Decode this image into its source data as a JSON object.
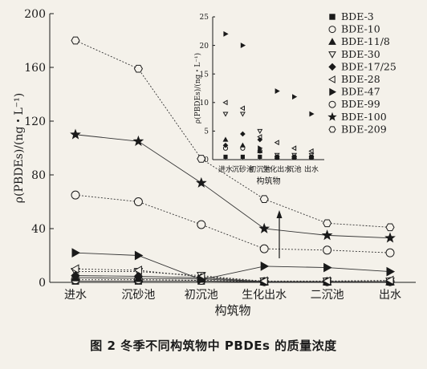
{
  "chart_data": [
    {
      "type": "line",
      "xlabel": "构筑物",
      "ylabel": "ρ(PBDEs)/(ng・L⁻¹)",
      "ylim": [
        0,
        200
      ],
      "yticks": [
        0,
        40,
        80,
        120,
        160,
        200
      ],
      "categories": [
        "进水",
        "沉砂池",
        "初沉池",
        "生化出水",
        "二沉池",
        "出水"
      ],
      "grid": false,
      "legend": "top-right",
      "series": [
        {
          "name": "BDE-3",
          "marker": "square",
          "style": "solid",
          "values": [
            1,
            1,
            1,
            0.3,
            0.3,
            0.3
          ]
        },
        {
          "name": "BDE-10",
          "marker": "circle-open",
          "style": "dotted",
          "values": [
            2,
            2,
            1.5,
            0.5,
            0.5,
            0.5
          ]
        },
        {
          "name": "BDE-11/8",
          "marker": "triangle-up",
          "style": "solid",
          "values": [
            3.5,
            3,
            2.5,
            0.5,
            0.5,
            0.5
          ]
        },
        {
          "name": "BDE-30",
          "marker": "triangle-down-open",
          "style": "dotted",
          "values": [
            8,
            8,
            5,
            0.8,
            0.8,
            0.8
          ]
        },
        {
          "name": "BDE-17/25",
          "marker": "diamond",
          "style": "solid",
          "values": [
            5,
            4.5,
            3.5,
            0.5,
            0.5,
            0.5
          ]
        },
        {
          "name": "BDE-28",
          "marker": "triangle-left-open",
          "style": "dotted",
          "values": [
            10,
            9,
            4,
            1,
            1,
            1.5
          ]
        },
        {
          "name": "BDE-47",
          "marker": "triangle-right",
          "style": "solid",
          "values": [
            22,
            20,
            2,
            12,
            11,
            8
          ]
        },
        {
          "name": "BDE-99",
          "marker": "circle-open",
          "style": "dotted",
          "values": [
            65,
            60,
            43,
            25,
            24,
            22
          ]
        },
        {
          "name": "BDE-100",
          "marker": "star",
          "style": "solid",
          "values": [
            110,
            105,
            74,
            40,
            35,
            33
          ]
        },
        {
          "name": "BDE-209",
          "marker": "hexagon-open",
          "style": "dotted",
          "values": [
            180,
            159,
            92,
            62,
            44,
            41
          ]
        }
      ]
    },
    {
      "type": "scatter",
      "xlabel": "构筑物",
      "ylabel": "ρ(PBDEs)/(ng・L⁻¹)",
      "ylim": [
        0,
        25
      ],
      "yticks": [
        0,
        5,
        10,
        15,
        20,
        25
      ],
      "categories": [
        "进水",
        "沉砂池",
        "初沉池",
        "生化出水",
        "沉池",
        "出水"
      ],
      "series": [
        {
          "name": "BDE-3",
          "marker": "square",
          "values": [
            0.5,
            0.5,
            0.5,
            0.3,
            0.3,
            0.3
          ]
        },
        {
          "name": "BDE-10",
          "marker": "circle-open",
          "values": [
            2,
            2,
            1.5,
            0.5,
            0.5,
            0.5
          ]
        },
        {
          "name": "BDE-11/8",
          "marker": "triangle-up",
          "values": [
            3.5,
            2.5,
            1.5,
            0.5,
            0.5,
            0.5
          ]
        },
        {
          "name": "BDE-30",
          "marker": "triangle-down-open",
          "values": [
            8,
            8,
            5,
            0.8,
            0.8,
            0.8
          ]
        },
        {
          "name": "BDE-17/25",
          "marker": "diamond",
          "values": [
            2.5,
            4.5,
            3.5,
            0.5,
            0.5,
            0.5
          ]
        },
        {
          "name": "BDE-28",
          "marker": "triangle-left-open",
          "values": [
            10,
            9,
            4,
            3,
            2,
            1.5
          ]
        },
        {
          "name": "BDE-47",
          "marker": "triangle-right",
          "values": [
            22,
            20,
            2,
            12,
            11,
            8
          ]
        }
      ]
    }
  ],
  "caption": "图 2    冬季不同构筑物中 PBDEs 的质量浓度"
}
